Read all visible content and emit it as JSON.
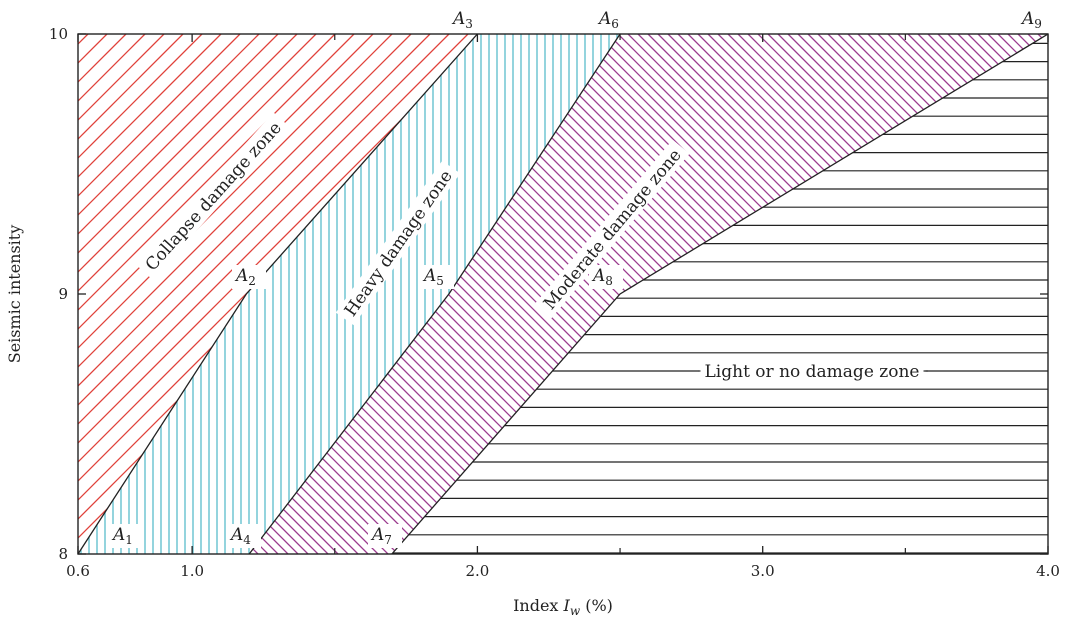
{
  "chart_data": {
    "type": "area",
    "title": "",
    "xlabel": "Index I_w (%)",
    "xlabel_parts": {
      "prefix": "Index ",
      "var": "I",
      "sub": "w",
      "suffix": " (%)"
    },
    "ylabel": "Seismic intensity",
    "xlim": [
      0.6,
      4.0
    ],
    "ylim": [
      8,
      10
    ],
    "x_tick_values": [
      0.6,
      1.0,
      2.0,
      3.0,
      4.0
    ],
    "x_tick_labels": [
      "0.6",
      "1.0",
      "2.0",
      "3.0",
      "4.0"
    ],
    "x_minor_ticks": [
      1.5,
      2.5,
      3.5
    ],
    "y_tick_values": [
      8,
      9,
      10
    ],
    "y_tick_labels": [
      "8",
      "9",
      "10"
    ],
    "grid": false,
    "boundaries": [
      {
        "points": [
          [
            0.6,
            8.0
          ],
          [
            1.19,
            9.0
          ],
          [
            2.0,
            10.0
          ]
        ],
        "labels": [
          "A1",
          "A2",
          "A3"
        ]
      },
      {
        "points": [
          [
            1.2,
            8.0
          ],
          [
            1.9,
            9.0
          ],
          [
            2.5,
            10.0
          ]
        ],
        "labels": [
          "A4",
          "A5",
          "A6"
        ]
      },
      {
        "points": [
          [
            1.7,
            8.0
          ],
          [
            2.5,
            9.0
          ],
          [
            4.0,
            10.0
          ]
        ],
        "labels": [
          "A7",
          "A8",
          "A9"
        ]
      }
    ],
    "zones": [
      {
        "name": "Collapse damage zone",
        "hatch": "diagonal",
        "color": "#e0413a"
      },
      {
        "name": "Heavy damage zone",
        "hatch": "vertical",
        "color": "#5bbccb"
      },
      {
        "name": "Moderate damage zone",
        "hatch": "diagonal-reverse",
        "color": "#9b3a8e"
      },
      {
        "name": "Light or no damage zone",
        "hatch": "horizontal",
        "color": "#222222"
      }
    ],
    "point_labels": [
      {
        "id": "A1",
        "letter": "A",
        "sub": "1"
      },
      {
        "id": "A2",
        "letter": "A",
        "sub": "2"
      },
      {
        "id": "A3",
        "letter": "A",
        "sub": "3"
      },
      {
        "id": "A4",
        "letter": "A",
        "sub": "4"
      },
      {
        "id": "A5",
        "letter": "A",
        "sub": "5"
      },
      {
        "id": "A6",
        "letter": "A",
        "sub": "6"
      },
      {
        "id": "A7",
        "letter": "A",
        "sub": "7"
      },
      {
        "id": "A8",
        "letter": "A",
        "sub": "8"
      },
      {
        "id": "A9",
        "letter": "A",
        "sub": "9"
      }
    ]
  }
}
